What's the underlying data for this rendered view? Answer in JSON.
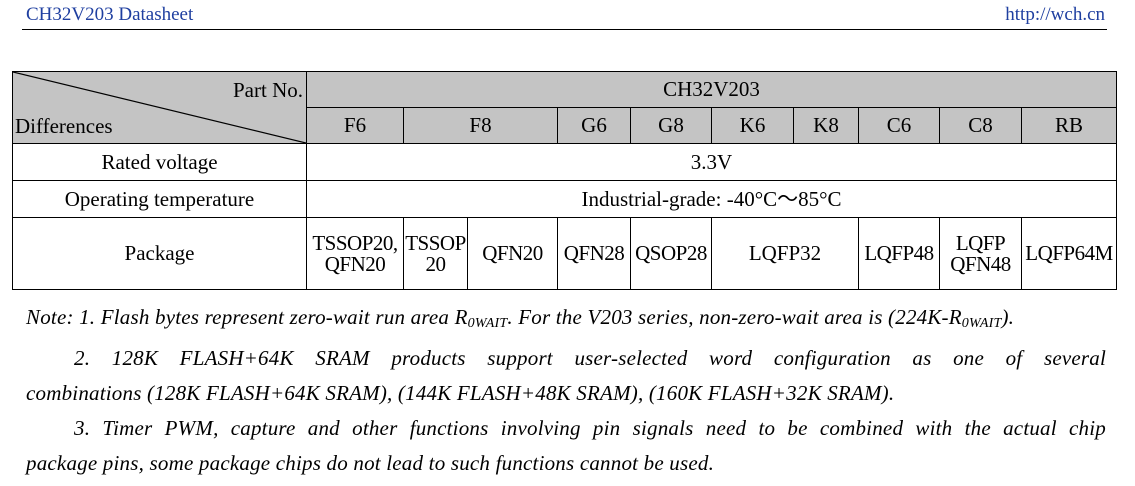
{
  "header": {
    "doc_title": "CH32V203 Datasheet",
    "url": "http://wch.cn"
  },
  "table": {
    "corner_top": "Part No.",
    "corner_bottom": "Differences",
    "series": "CH32V203",
    "parts": [
      "F6",
      "F8",
      "G6",
      "G8",
      "K6",
      "K8",
      "C6",
      "C8",
      "RB"
    ],
    "rows": {
      "voltage_label": "Rated voltage",
      "voltage_value": "3.3V",
      "temp_label": "Operating temperature",
      "temp_value": "Industrial-grade: -40°C～85°C",
      "package_label": "Package"
    },
    "packages": {
      "p1_line1": "TSSOP20,",
      "p1_line2": "QFN20",
      "p2_line1": "TSSOP",
      "p2_line2": "20",
      "p3": "QFN20",
      "p4": "QFN28",
      "p5": "QSOP28",
      "p6": "LQFP32",
      "p7": "LQFP48",
      "p8_line1": "LQFP",
      "p8_line2": "QFN48",
      "p9": "LQFP64M"
    }
  },
  "notes": {
    "n1_a": "Note: 1. Flash bytes represent zero-wait run area R",
    "n1_sub1": "0WAIT",
    "n1_b": ". For the V203 series, non-zero-wait area is (224K-R",
    "n1_sub2": "0WAIT",
    "n1_c": ").",
    "n2_a": "2. 128K FLASH+64K SRAM products support user-selected word configuration as one of several",
    "n2_b": "combinations (128K FLASH+64K SRAM), (144K FLASH+48K SRAM), (160K FLASH+32K SRAM).",
    "n3_a": "3. Timer PWM, capture and other functions involving pin signals need to be combined with the actual chip",
    "n3_b": "package pins, some package chips do not lead to such functions cannot be used."
  }
}
